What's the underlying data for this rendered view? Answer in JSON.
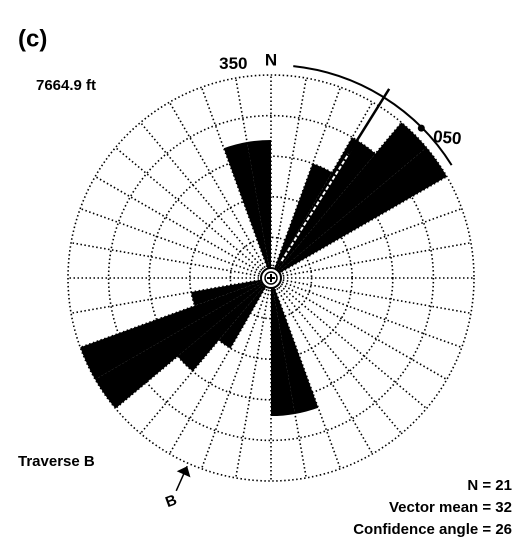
{
  "chart_data": {
    "type": "rose",
    "panel_label": "(c)",
    "depth_label": "7664.9 ft",
    "bin_width": 10,
    "bins_start": [
      340,
      350,
      20,
      30,
      40,
      50,
      160,
      170,
      210,
      220,
      230,
      240,
      250
    ],
    "values": [
      3.4,
      3.4,
      3,
      4,
      5,
      5,
      3.4,
      3.4,
      2,
      3,
      5,
      5,
      2
    ],
    "color": "#000000",
    "rlim": [
      0,
      5
    ],
    "rticks": [
      1,
      2,
      3,
      4,
      5
    ],
    "angle_ticks": [
      350,
      {
        "value": 0,
        "label": "N"
      },
      {
        "value": 50,
        "label": "050"
      }
    ],
    "traverse_label": "Traverse B",
    "traverse_direction": {
      "value": 204,
      "label": "B"
    },
    "vector_mean": 32,
    "confidence_angle": 26,
    "stats": [
      "N = 21",
      "Vector mean = 32",
      "Confidence angle = 26"
    ]
  }
}
